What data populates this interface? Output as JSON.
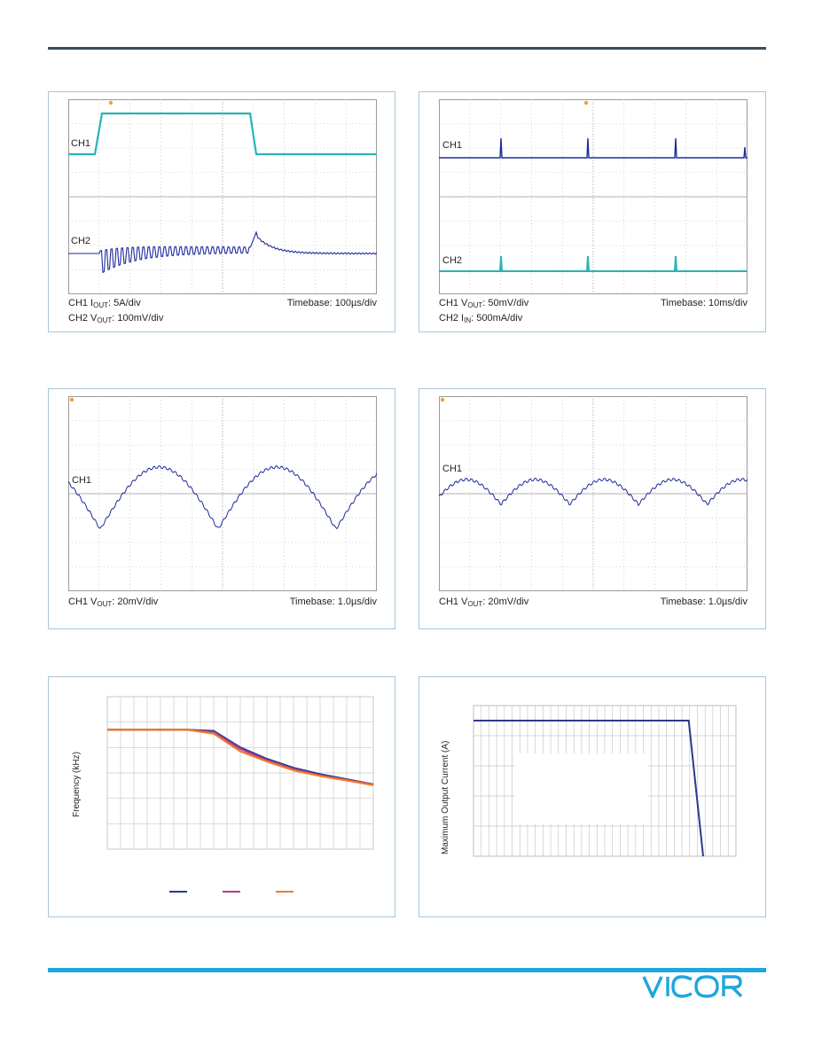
{
  "panels": {
    "p1": {
      "ch1": "CH1",
      "ch2": "CH2",
      "cap1_pre": "CH1 I",
      "cap1_sub": "OUT",
      "cap1_post": ": 5A/div",
      "cap2_pre": "CH2 V",
      "cap2_sub": "OUT",
      "cap2_post": ": 100mV/div",
      "timebase": "Timebase: 100µs/div"
    },
    "p2": {
      "ch1": "CH1",
      "ch2": "CH2",
      "cap1_pre": "CH1 V",
      "cap1_sub": "OUT",
      "cap1_post": ": 50mV/div",
      "cap2_pre": "CH2 I",
      "cap2_sub": "IN",
      "cap2_post": ": 500mA/div",
      "timebase": "Timebase: 10ms/div"
    },
    "p3": {
      "ch1": "CH1",
      "cap1_pre": "CH1 V",
      "cap1_sub": "OUT",
      "cap1_post": ": 20mV/div",
      "timebase": "Timebase: 1.0µs/div"
    },
    "p4": {
      "ch1": "CH1",
      "cap1_pre": "CH1 V",
      "cap1_sub": "OUT",
      "cap1_post": ": 20mV/div",
      "timebase": "Timebase: 1.0µs/div"
    },
    "p5": {
      "ylabel": "Frequency (kHz)"
    },
    "p6": {
      "ylabel": "Maximum Output Current (A)"
    }
  },
  "colors": {
    "cyan_trace": "#2bb3b3",
    "blue_trace": "#1f2a9c",
    "orange_marker": "#f0a030",
    "series1": "#2b3a8c",
    "series2": "#b03a8a",
    "series3": "#f07a2a",
    "accent": "#1ea6dc"
  },
  "chart_data": [
    {
      "type": "line",
      "title": "",
      "xlabel": "",
      "ylabel": "Frequency (kHz)",
      "x": [
        0,
        1,
        2,
        3,
        4,
        5,
        6,
        7,
        8,
        9,
        10
      ],
      "series": [
        {
          "values": [
            5.7,
            5.7,
            5.7,
            5.7,
            5.65,
            5.0,
            4.55,
            4.2,
            3.95,
            3.75,
            3.55
          ]
        },
        {
          "values": [
            5.7,
            5.7,
            5.7,
            5.7,
            5.6,
            4.95,
            4.5,
            4.15,
            3.9,
            3.72,
            3.55
          ]
        },
        {
          "values": [
            5.7,
            5.7,
            5.7,
            5.7,
            5.55,
            4.85,
            4.45,
            4.1,
            3.88,
            3.7,
            3.52
          ]
        }
      ],
      "ylim": [
        1,
        7
      ],
      "grid": true,
      "legend": "bottom"
    },
    {
      "type": "line",
      "title": "",
      "xlabel": "",
      "ylabel": "Maximum Output Current (A)",
      "x": [
        0,
        8.2,
        8.75
      ],
      "series": [
        {
          "values": [
            4.5,
            4.5,
            0
          ]
        }
      ],
      "ylim": [
        0,
        5
      ],
      "xlim": [
        0,
        10
      ],
      "grid": true
    }
  ]
}
